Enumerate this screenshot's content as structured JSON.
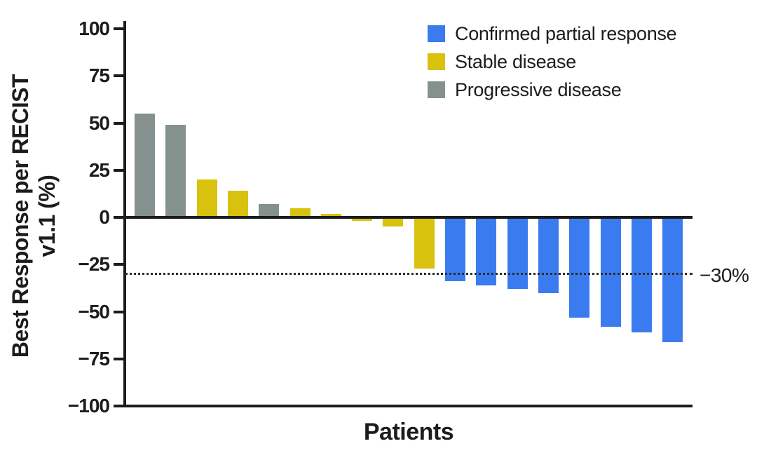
{
  "chart_data": {
    "type": "bar",
    "title": "",
    "xlabel": "Patients",
    "ylabel_line1": "Best Response per RECIST",
    "ylabel_line2": "v1.1 (%)",
    "ylim": [
      -100,
      100
    ],
    "yticks": [
      100,
      75,
      50,
      25,
      0,
      -25,
      -50,
      -75,
      -100
    ],
    "grid": false,
    "legend_position": "top-right",
    "reference_line": {
      "y": -30,
      "label": "−30%"
    },
    "legend": [
      {
        "key": "confirmed",
        "label": "Confirmed partial response"
      },
      {
        "key": "stable",
        "label": "Stable disease"
      },
      {
        "key": "progressive",
        "label": "Progressive disease"
      }
    ],
    "colors": {
      "confirmed": "#3B7BF0",
      "stable": "#D8C20E",
      "progressive": "#84918F",
      "axis": "#1c1c1c"
    },
    "bars": [
      {
        "patient": 1,
        "value": 55,
        "response": "progressive"
      },
      {
        "patient": 2,
        "value": 49,
        "response": "progressive"
      },
      {
        "patient": 3,
        "value": 20,
        "response": "stable"
      },
      {
        "patient": 4,
        "value": 14,
        "response": "stable"
      },
      {
        "patient": 5,
        "value": 7,
        "response": "progressive"
      },
      {
        "patient": 6,
        "value": 5,
        "response": "stable"
      },
      {
        "patient": 7,
        "value": 2,
        "response": "stable"
      },
      {
        "patient": 8,
        "value": -2,
        "response": "stable"
      },
      {
        "patient": 9,
        "value": -5,
        "response": "stable"
      },
      {
        "patient": 10,
        "value": -27,
        "response": "stable"
      },
      {
        "patient": 11,
        "value": -34,
        "response": "confirmed"
      },
      {
        "patient": 12,
        "value": -36,
        "response": "confirmed"
      },
      {
        "patient": 13,
        "value": -38,
        "response": "confirmed"
      },
      {
        "patient": 14,
        "value": -40,
        "response": "confirmed"
      },
      {
        "patient": 15,
        "value": -53,
        "response": "confirmed"
      },
      {
        "patient": 16,
        "value": -58,
        "response": "confirmed"
      },
      {
        "patient": 17,
        "value": -61,
        "response": "confirmed"
      },
      {
        "patient": 18,
        "value": -66,
        "response": "confirmed"
      }
    ]
  }
}
